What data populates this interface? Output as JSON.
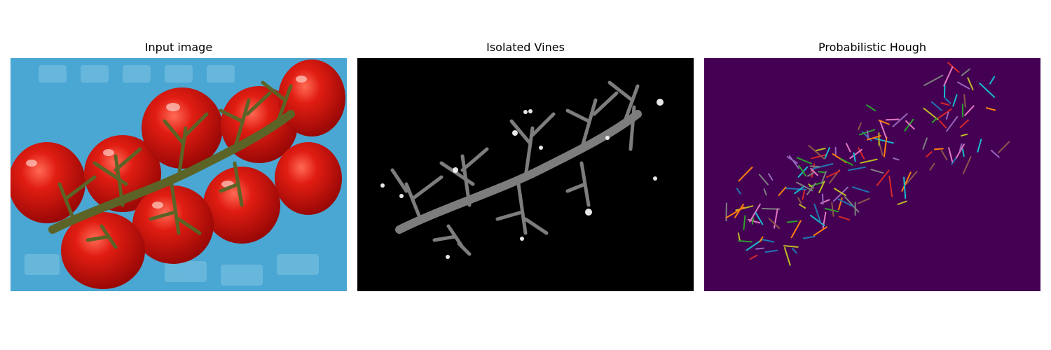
{
  "panels": [
    {
      "title": "Input image",
      "kind": "photo-tomato-vine"
    },
    {
      "title": "Isolated Vines",
      "kind": "grayscale-vine-mask"
    },
    {
      "title": "Probabilistic Hough",
      "kind": "hough-line-segments"
    }
  ],
  "colors": {
    "figure_background": "#ffffff",
    "photo_background": "#4aa6d2",
    "tomato_red": "#d8140f",
    "vine_green": "#5b6426",
    "mask_background": "#000000",
    "vine_gray": "#8a8a8a",
    "hough_background": "#440154",
    "segment_palette": [
      "#1f77b4",
      "#ff7f0e",
      "#2ca02c",
      "#d62728",
      "#9467bd",
      "#8c564b",
      "#e377c2",
      "#7f7f7f",
      "#bcbd22",
      "#17becf"
    ]
  }
}
